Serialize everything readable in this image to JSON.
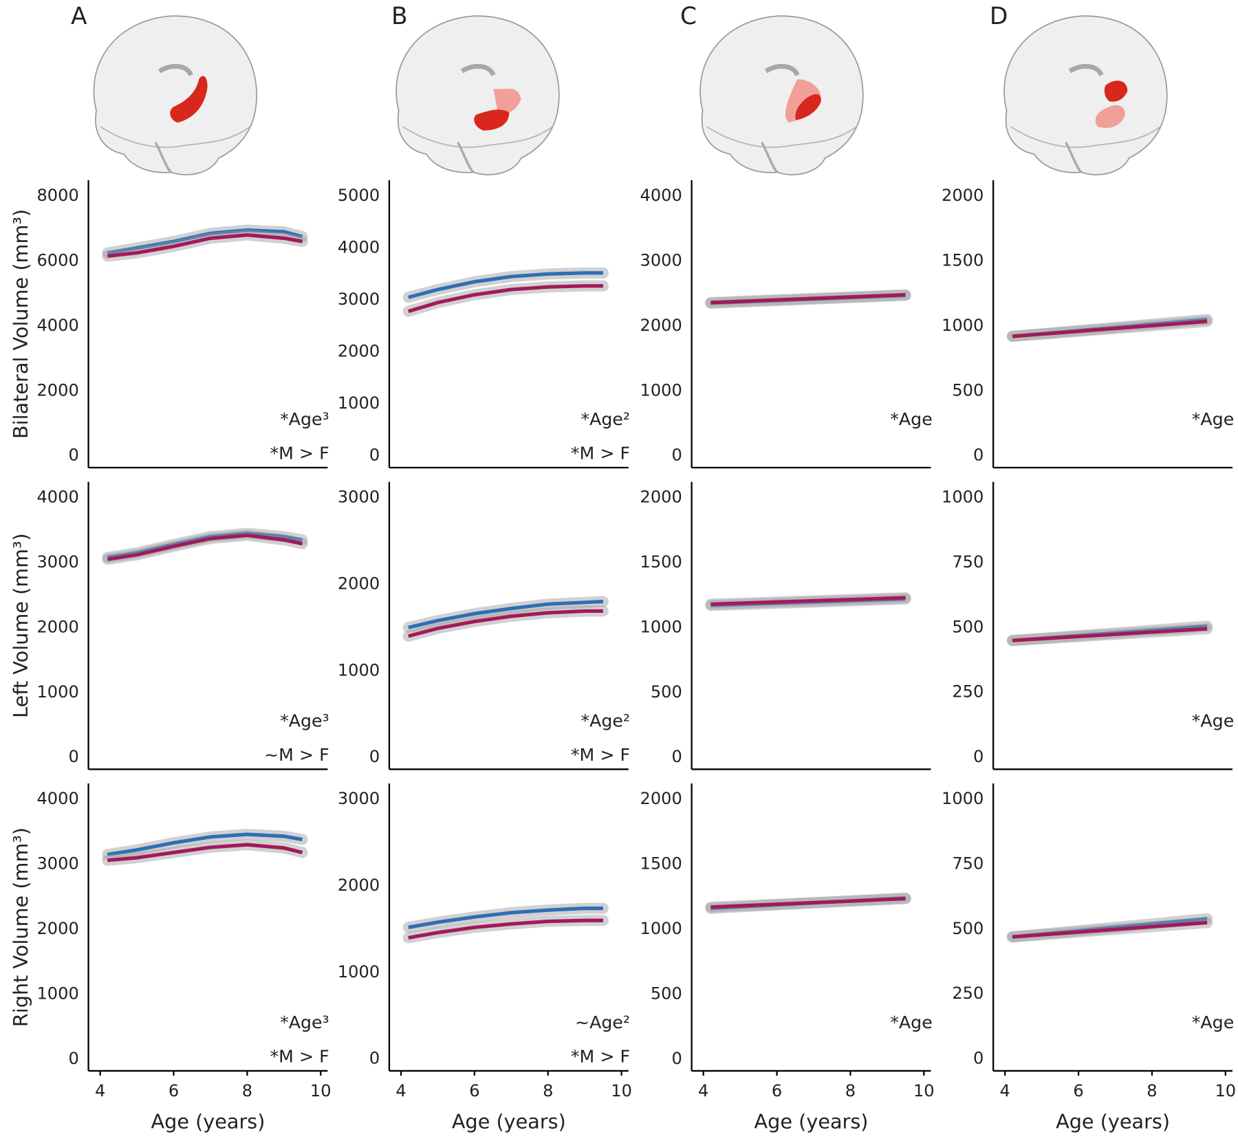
{
  "panels": [
    "A",
    "B",
    "C",
    "D"
  ],
  "chart_data": [
    {
      "type": "line",
      "ylabel": "Bilateral Volume (mm³)",
      "xlim": [
        3.68,
        10.19
      ],
      "ylim": [
        -365,
        8486
      ],
      "yticks": [
        0,
        2000,
        4000,
        6000,
        8000
      ],
      "x": [
        4.2,
        5,
        6,
        7,
        8,
        9,
        9.5
      ],
      "series": [
        {
          "color": "#2f6eb5",
          "values": [
            6250,
            6400,
            6600,
            6850,
            6950,
            6900,
            6750
          ]
        },
        {
          "color": "#a3195b",
          "values": [
            6150,
            6250,
            6450,
            6700,
            6800,
            6700,
            6600
          ]
        }
      ],
      "annotations": [
        "*Age³",
        "*M > F"
      ]
    },
    {
      "type": "line",
      "xlim": [
        3.68,
        10.19
      ],
      "ylim": [
        -228,
        5304
      ],
      "yticks": [
        0,
        1000,
        2000,
        3000,
        4000,
        5000
      ],
      "x": [
        4.2,
        5,
        6,
        7,
        8,
        9,
        9.5
      ],
      "series": [
        {
          "color": "#2f6eb5",
          "values": [
            3050,
            3200,
            3350,
            3450,
            3500,
            3520,
            3520
          ]
        },
        {
          "color": "#a3195b",
          "values": [
            2780,
            2950,
            3100,
            3200,
            3250,
            3270,
            3270
          ]
        }
      ],
      "annotations": [
        "*Age²",
        "*M > F"
      ]
    },
    {
      "type": "line",
      "xlim": [
        3.68,
        10.19
      ],
      "ylim": [
        -182,
        4243
      ],
      "yticks": [
        0,
        1000,
        2000,
        3000,
        4000
      ],
      "x": [
        4.2,
        9.5
      ],
      "series": [
        {
          "color": "#2f6eb5",
          "values": [
            2350,
            2470
          ]
        },
        {
          "color": "#a3195b",
          "values": [
            2360,
            2480
          ]
        }
      ],
      "annotations": [
        "*Age"
      ]
    },
    {
      "type": "line",
      "xlim": [
        3.68,
        10.19
      ],
      "ylim": [
        -91,
        2122
      ],
      "yticks": [
        0,
        500,
        1000,
        1500,
        2000
      ],
      "x": [
        4.2,
        9.5
      ],
      "series": [
        {
          "color": "#2f6eb5",
          "values": [
            920,
            1050
          ]
        },
        {
          "color": "#a3195b",
          "values": [
            920,
            1035
          ]
        }
      ],
      "annotations": [
        "*Age"
      ]
    },
    {
      "type": "line",
      "ylabel": "Left Volume (mm³)",
      "xlim": [
        3.68,
        10.19
      ],
      "ylim": [
        -182,
        4243
      ],
      "yticks": [
        0,
        1000,
        2000,
        3000,
        4000
      ],
      "x": [
        4.2,
        5,
        6,
        7,
        8,
        9,
        9.5
      ],
      "series": [
        {
          "color": "#2f6eb5",
          "values": [
            3080,
            3150,
            3280,
            3400,
            3450,
            3400,
            3350
          ]
        },
        {
          "color": "#a3195b",
          "values": [
            3050,
            3120,
            3250,
            3370,
            3420,
            3350,
            3290
          ]
        }
      ],
      "annotations": [
        "*Age³",
        "~M > F"
      ]
    },
    {
      "type": "line",
      "xlim": [
        3.68,
        10.19
      ],
      "ylim": [
        -137,
        3182
      ],
      "yticks": [
        0,
        1000,
        2000,
        3000
      ],
      "x": [
        4.2,
        5,
        6,
        7,
        8,
        9,
        9.5
      ],
      "series": [
        {
          "color": "#2f6eb5",
          "values": [
            1500,
            1580,
            1660,
            1720,
            1770,
            1790,
            1800
          ]
        },
        {
          "color": "#a3195b",
          "values": [
            1400,
            1490,
            1570,
            1630,
            1670,
            1690,
            1690
          ]
        }
      ],
      "annotations": [
        "*Age²",
        "*M > F"
      ]
    },
    {
      "type": "line",
      "xlim": [
        3.68,
        10.19
      ],
      "ylim": [
        -91,
        2122
      ],
      "yticks": [
        0,
        500,
        1000,
        1500,
        2000
      ],
      "x": [
        4.2,
        9.5
      ],
      "series": [
        {
          "color": "#2f6eb5",
          "values": [
            1170,
            1220
          ]
        },
        {
          "color": "#a3195b",
          "values": [
            1180,
            1230
          ]
        }
      ],
      "annotations": []
    },
    {
      "type": "line",
      "xlim": [
        3.68,
        10.19
      ],
      "ylim": [
        -46,
        1061
      ],
      "yticks": [
        0,
        250,
        500,
        750,
        1000
      ],
      "x": [
        4.2,
        9.5
      ],
      "series": [
        {
          "color": "#2f6eb5",
          "values": [
            450,
            505
          ]
        },
        {
          "color": "#a3195b",
          "values": [
            450,
            495
          ]
        }
      ],
      "annotations": [
        "*Age"
      ]
    },
    {
      "type": "line",
      "ylabel": "Right Volume (mm³)",
      "xlabel": "Age (years)",
      "xlim": [
        3.68,
        10.19
      ],
      "xticks": [
        4,
        6,
        8,
        10
      ],
      "ylim": [
        -182,
        4243
      ],
      "yticks": [
        0,
        1000,
        2000,
        3000,
        4000
      ],
      "x": [
        4.2,
        5,
        6,
        7,
        8,
        9,
        9.5
      ],
      "series": [
        {
          "color": "#2f6eb5",
          "values": [
            3150,
            3220,
            3330,
            3420,
            3460,
            3430,
            3380
          ]
        },
        {
          "color": "#a3195b",
          "values": [
            3060,
            3100,
            3180,
            3260,
            3300,
            3250,
            3180
          ]
        }
      ],
      "annotations": [
        "*Age³",
        "*M > F"
      ]
    },
    {
      "type": "line",
      "xlabel": "Age (years)",
      "xlim": [
        3.68,
        10.19
      ],
      "xticks": [
        4,
        6,
        8,
        10
      ],
      "ylim": [
        -137,
        3182
      ],
      "yticks": [
        0,
        1000,
        2000,
        3000
      ],
      "x": [
        4.2,
        5,
        6,
        7,
        8,
        9,
        9.5
      ],
      "series": [
        {
          "color": "#2f6eb5",
          "values": [
            1520,
            1580,
            1640,
            1690,
            1720,
            1740,
            1740
          ]
        },
        {
          "color": "#a3195b",
          "values": [
            1400,
            1460,
            1520,
            1560,
            1590,
            1600,
            1600
          ]
        }
      ],
      "annotations": [
        "~Age²",
        "*M > F"
      ]
    },
    {
      "type": "line",
      "xlabel": "Age (years)",
      "xlim": [
        3.68,
        10.19
      ],
      "xticks": [
        4,
        6,
        8,
        10
      ],
      "ylim": [
        -91,
        2122
      ],
      "yticks": [
        0,
        500,
        1000,
        1500,
        2000
      ],
      "x": [
        4.2,
        9.5
      ],
      "series": [
        {
          "color": "#2f6eb5",
          "values": [
            1160,
            1240
          ]
        },
        {
          "color": "#a3195b",
          "values": [
            1170,
            1235
          ]
        }
      ],
      "annotations": [
        "*Age"
      ]
    },
    {
      "type": "line",
      "xlabel": "Age (years)",
      "xlim": [
        3.68,
        10.19
      ],
      "xticks": [
        4,
        6,
        8,
        10
      ],
      "ylim": [
        -46,
        1061
      ],
      "yticks": [
        0,
        250,
        500,
        750,
        1000
      ],
      "x": [
        4.2,
        9.5
      ],
      "series": [
        {
          "color": "#2f6eb5",
          "values": [
            470,
            540
          ]
        },
        {
          "color": "#a3195b",
          "values": [
            470,
            525
          ]
        }
      ],
      "annotations": [
        "*Age"
      ]
    }
  ]
}
